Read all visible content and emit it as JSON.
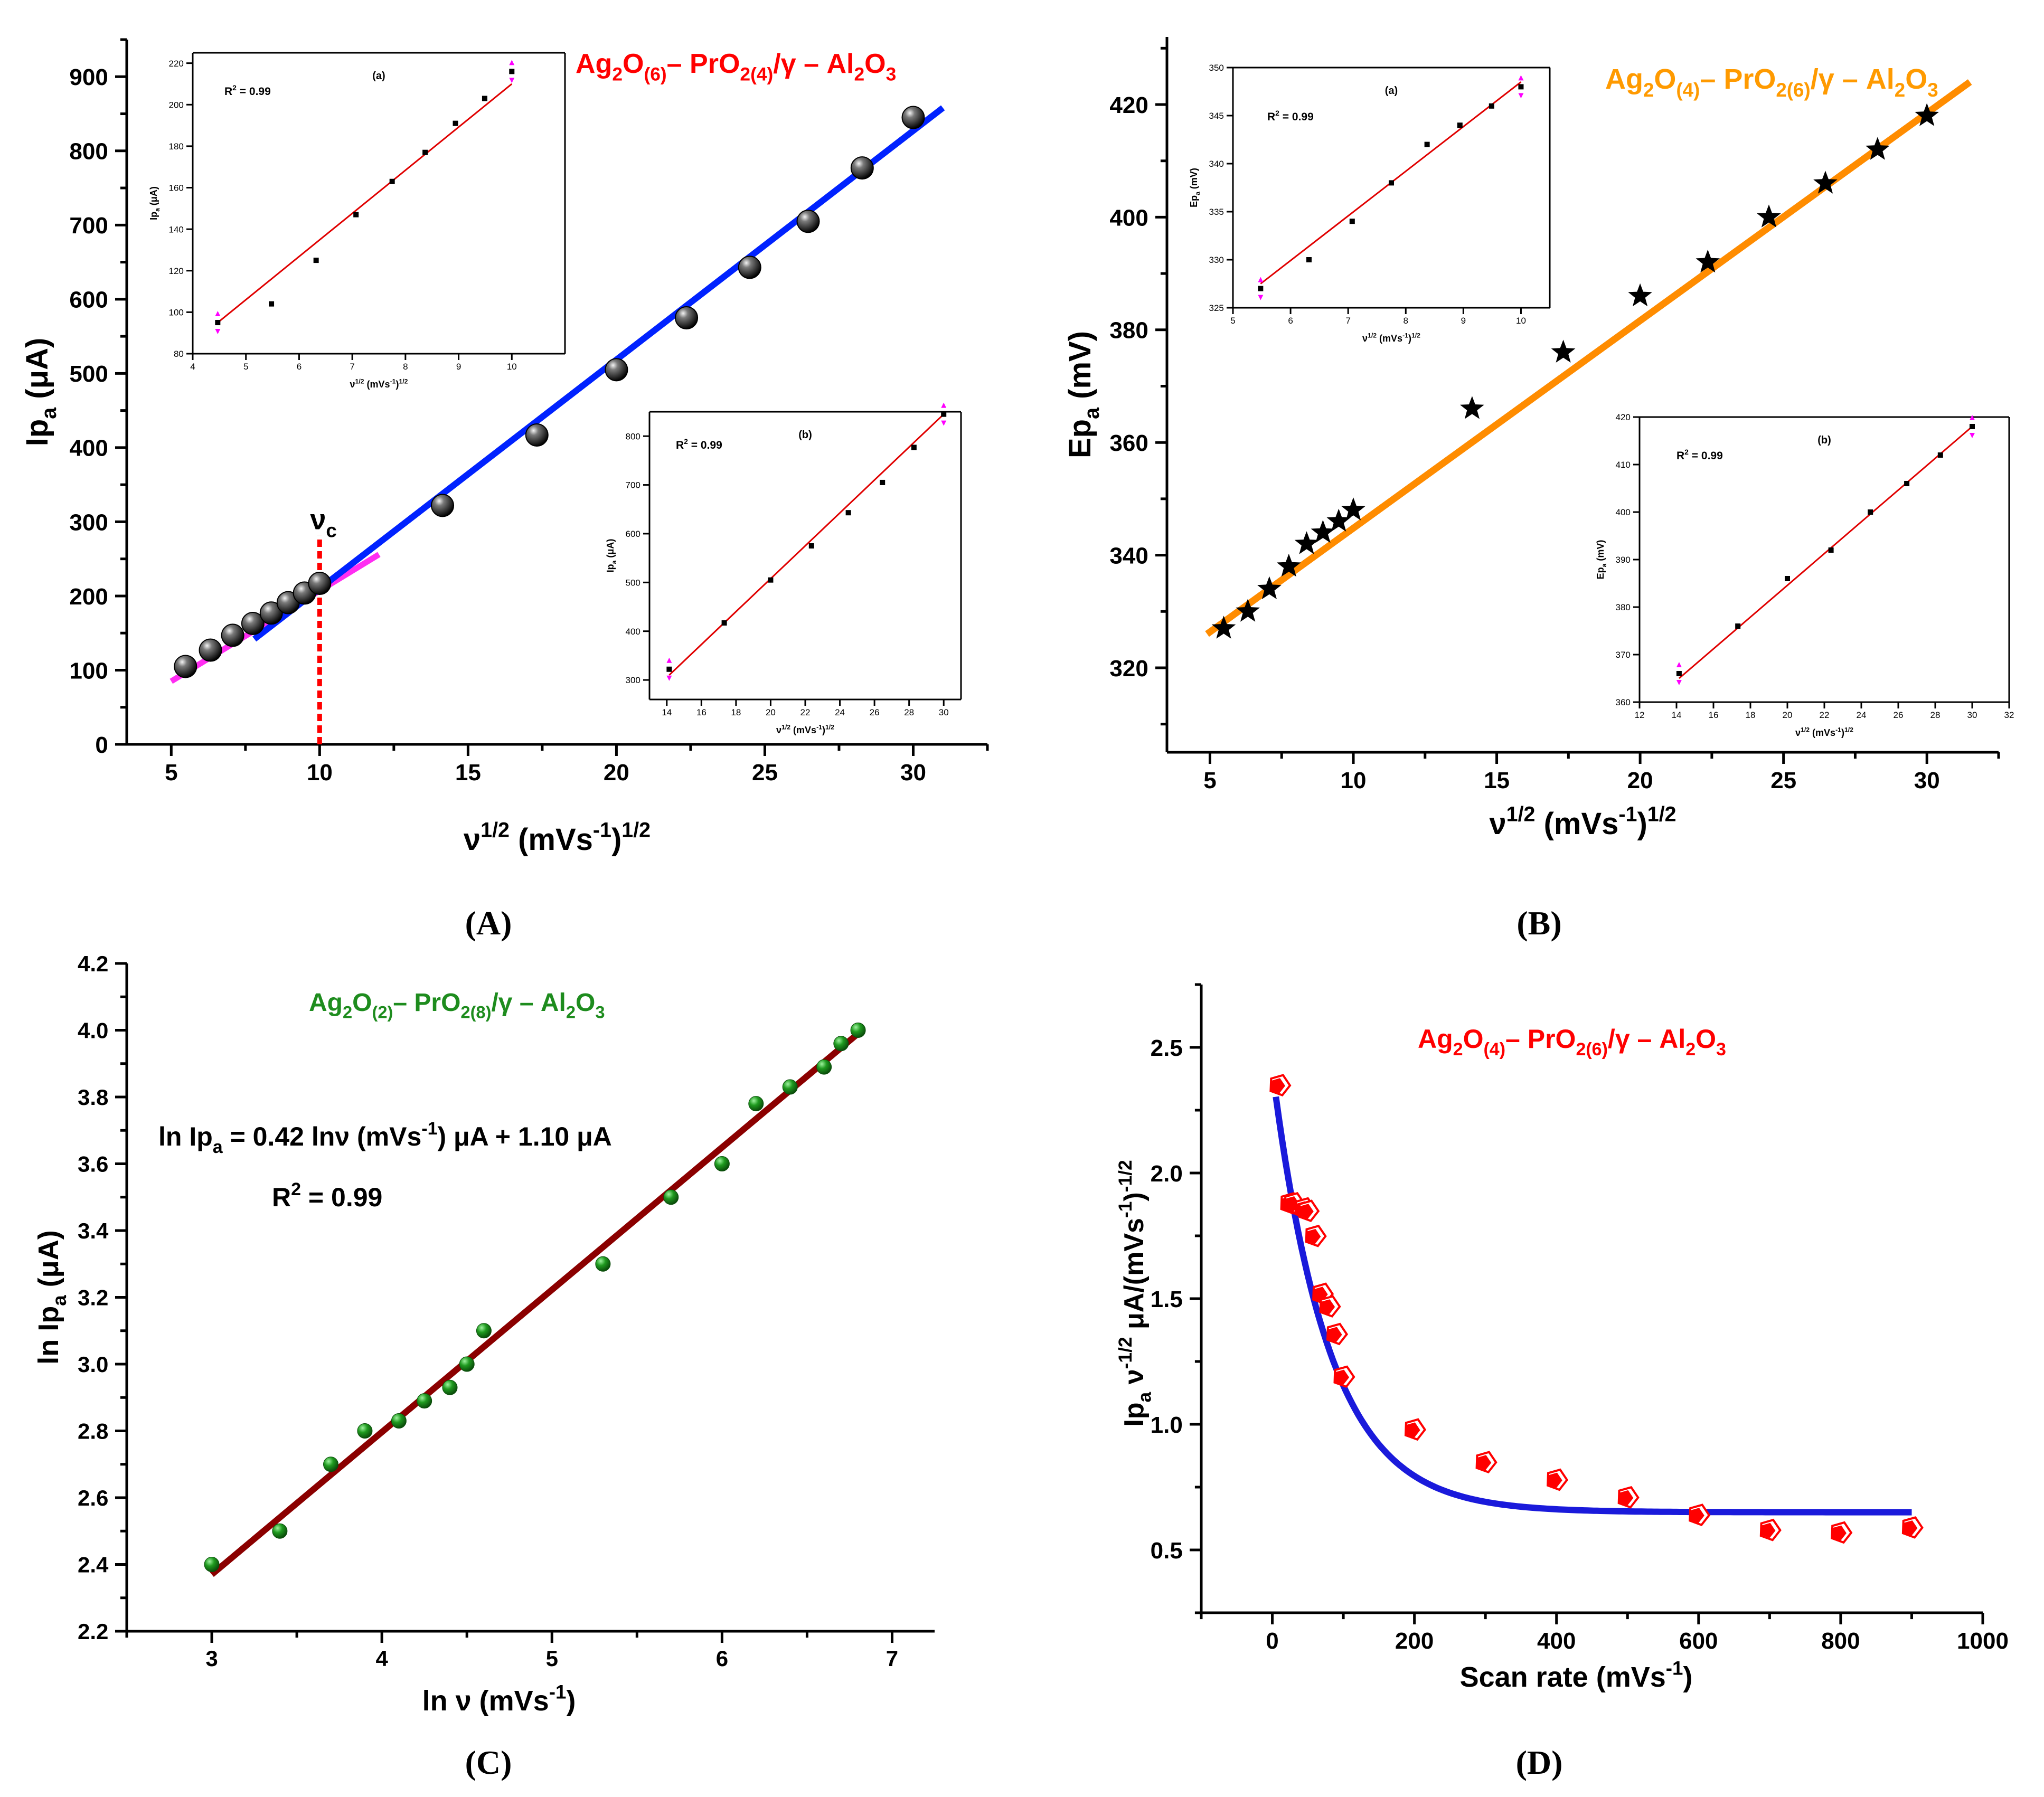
{
  "panels": {
    "A": {
      "label": "(A)",
      "title": {
        "parts": [
          [
            "Ag",
            "n"
          ],
          [
            "2",
            "sub"
          ],
          [
            "O",
            "n"
          ],
          [
            "(6)",
            "sub"
          ],
          [
            "– PrO",
            "n"
          ],
          [
            "2(4)",
            "sub"
          ],
          [
            "/γ – Al",
            "n"
          ],
          [
            "2",
            "sub"
          ],
          [
            "O",
            "n"
          ],
          [
            "3",
            "sub"
          ]
        ]
      },
      "xlabel": {
        "parts": [
          [
            "ν",
            "n"
          ],
          [
            "1/2",
            "sup"
          ],
          [
            " (mVs",
            "n"
          ],
          [
            "-1",
            "sup"
          ],
          [
            ")",
            "n"
          ],
          [
            "1/2",
            "sup"
          ]
        ]
      },
      "ylabel": {
        "parts": [
          [
            "Ip",
            "n"
          ],
          [
            "a",
            "sub"
          ],
          [
            " (μA)",
            "n"
          ]
        ]
      },
      "annotation": {
        "parts": [
          [
            "ν",
            "n"
          ],
          [
            "c",
            "sub"
          ]
        ]
      },
      "chart_data": {
        "type": "scatter",
        "xlim": [
          3.5,
          32.5
        ],
        "ylim": [
          0,
          950
        ],
        "xticks": [
          5,
          10,
          15,
          20,
          25,
          30
        ],
        "yticks": [
          0,
          100,
          200,
          300,
          400,
          500,
          600,
          700,
          800,
          900
        ],
        "points": {
          "x": [
            5.48,
            6.32,
            7.07,
            7.75,
            8.37,
            8.94,
            9.49,
            10.0,
            14.14,
            17.32,
            20.0,
            22.36,
            24.49,
            26.46,
            28.28,
            30.0
          ],
          "y": [
            105,
            127,
            147,
            163,
            177,
            191,
            204,
            217,
            322,
            417,
            505,
            575,
            643,
            705,
            777,
            845
          ]
        },
        "fit_low": {
          "x": [
            5.0,
            12.0
          ],
          "y": [
            85,
            256
          ],
          "color": "#ff2df2"
        },
        "fit_high": {
          "x": [
            7.8,
            31.0
          ],
          "y": [
            142,
            858
          ],
          "color": "#0022ff"
        },
        "vc_x": 10,
        "inset_a": {
          "label": "(a)",
          "r2": "R",
          "r2_sup": "2",
          "r2_val": " = 0.99",
          "xlabel": {
            "parts": [
              [
                "ν",
                "n"
              ],
              [
                "1/2",
                "sup"
              ],
              [
                " (mVs",
                "n"
              ],
              [
                "-1",
                "sup"
              ],
              [
                ")",
                "n"
              ],
              [
                "1/2",
                "sup"
              ]
            ]
          },
          "ylabel": {
            "parts": [
              [
                "Ip",
                "n"
              ],
              [
                "a",
                "sub"
              ],
              [
                " (μA)",
                "n"
              ]
            ]
          },
          "xlim": [
            4,
            11
          ],
          "ylim": [
            80,
            225
          ],
          "xticks": [
            4,
            5,
            6,
            7,
            8,
            9,
            10
          ],
          "yticks": [
            80,
            100,
            120,
            140,
            160,
            180,
            200,
            220
          ],
          "points": {
            "x": [
              4.47,
              5.48,
              6.32,
              7.07,
              7.75,
              8.37,
              8.94,
              9.49,
              10.0
            ],
            "y": [
              95,
              104,
              125,
              147,
              163,
              177,
              191,
              203,
              216
            ]
          },
          "fit": {
            "x": [
              4.47,
              10.0
            ],
            "y": [
              95,
              210
            ]
          }
        },
        "inset_b": {
          "label": "(b)",
          "r2": "R",
          "r2_sup": "2",
          "r2_val": " = 0.99",
          "xlabel": {
            "parts": [
              [
                "ν",
                "n"
              ],
              [
                "1/2",
                "sup"
              ],
              [
                " (mVs",
                "n"
              ],
              [
                "-1",
                "sup"
              ],
              [
                ")",
                "n"
              ],
              [
                "1/2",
                "sup"
              ]
            ]
          },
          "ylabel": {
            "parts": [
              [
                "Ip",
                "n"
              ],
              [
                "a",
                "sub"
              ],
              [
                " (μA)",
                "n"
              ]
            ]
          },
          "xlim": [
            13,
            31
          ],
          "ylim": [
            260,
            850
          ],
          "xticks": [
            14,
            16,
            18,
            20,
            22,
            24,
            26,
            28,
            30
          ],
          "yticks": [
            300,
            400,
            500,
            600,
            700,
            800
          ],
          "points": {
            "x": [
              14.14,
              17.32,
              20.0,
              22.36,
              24.49,
              26.46,
              28.28,
              30.0
            ],
            "y": [
              322,
              417,
              505,
              575,
              643,
              705,
              777,
              845
            ]
          },
          "fit": {
            "x": [
              14.14,
              30.0
            ],
            "y": [
              310,
              845
            ]
          }
        }
      }
    },
    "B": {
      "label": "(B)",
      "title": {
        "parts": [
          [
            "Ag",
            "n"
          ],
          [
            "2",
            "sub"
          ],
          [
            "O",
            "n"
          ],
          [
            "(4)",
            "sub"
          ],
          [
            "– PrO",
            "n"
          ],
          [
            "2(6)",
            "sub"
          ],
          [
            "/γ – Al",
            "n"
          ],
          [
            "2",
            "sub"
          ],
          [
            "O",
            "n"
          ],
          [
            "3",
            "sub"
          ]
        ]
      },
      "xlabel": {
        "parts": [
          [
            "ν",
            "n"
          ],
          [
            "1/2",
            "sup"
          ],
          [
            " (mVs",
            "n"
          ],
          [
            "-1",
            "sup"
          ],
          [
            ")",
            "n"
          ],
          [
            "1/2",
            "sup"
          ]
        ]
      },
      "ylabel": {
        "parts": [
          [
            "Ep",
            "n"
          ],
          [
            "a",
            "sub"
          ],
          [
            " (mV)",
            "n"
          ]
        ]
      },
      "chart_data": {
        "type": "scatter",
        "xlim": [
          3.5,
          32.5
        ],
        "ylim": [
          305,
          432
        ],
        "xticks": [
          5,
          10,
          15,
          20,
          25,
          30
        ],
        "yticks": [
          320,
          340,
          360,
          380,
          400,
          420
        ],
        "points": {
          "x": [
            5.48,
            6.32,
            7.07,
            7.75,
            8.37,
            8.94,
            9.49,
            10.0,
            14.14,
            17.32,
            20.0,
            22.36,
            24.49,
            26.46,
            28.28,
            30.0
          ],
          "y": [
            327,
            330,
            334,
            338,
            342,
            344,
            346,
            348,
            366,
            376,
            386,
            392,
            400,
            406,
            412,
            418
          ]
        },
        "fit": {
          "x": [
            4.9,
            31.5
          ],
          "y": [
            326,
            424
          ],
          "color": "#ff8c00"
        },
        "inset_a": {
          "label": "(a)",
          "r2": "R",
          "r2_sup": "2",
          "r2_val": " = 0.99",
          "xlabel": {
            "parts": [
              [
                "ν",
                "n"
              ],
              [
                "1/2",
                "sup"
              ],
              [
                " (mVs",
                "n"
              ],
              [
                "-1",
                "sup"
              ],
              [
                ")",
                "n"
              ],
              [
                "1/2",
                "sup"
              ]
            ]
          },
          "ylabel": {
            "parts": [
              [
                "Ep",
                "n"
              ],
              [
                "a",
                "sub"
              ],
              [
                " (mV)",
                "n"
              ]
            ]
          },
          "xlim": [
            5,
            10.5
          ],
          "ylim": [
            325,
            350
          ],
          "xticks": [
            5,
            6,
            7,
            8,
            9,
            10
          ],
          "yticks": [
            325,
            330,
            335,
            340,
            345,
            350
          ],
          "points": {
            "x": [
              5.48,
              6.32,
              7.07,
              7.75,
              8.37,
              8.94,
              9.49,
              10.0
            ],
            "y": [
              327,
              330,
              334,
              338,
              342,
              344,
              346,
              348
            ]
          },
          "fit": {
            "x": [
              5.48,
              10.0
            ],
            "y": [
              327.5,
              348.5
            ]
          }
        },
        "inset_b": {
          "label": "(b)",
          "r2": "R",
          "r2_sup": "2",
          "r2_val": " = 0.99",
          "xlabel": {
            "parts": [
              [
                "ν",
                "n"
              ],
              [
                "1/2",
                "sup"
              ],
              [
                " (mVs",
                "n"
              ],
              [
                "-1",
                "sup"
              ],
              [
                ")",
                "n"
              ],
              [
                "1/2",
                "sup"
              ]
            ]
          },
          "ylabel": {
            "parts": [
              [
                "Ep",
                "n"
              ],
              [
                "a",
                "sub"
              ],
              [
                " (mV)",
                "n"
              ]
            ]
          },
          "xlim": [
            12,
            32
          ],
          "ylim": [
            360,
            420
          ],
          "xticks": [
            12,
            14,
            16,
            18,
            20,
            22,
            24,
            26,
            28,
            30,
            32
          ],
          "yticks": [
            360,
            370,
            380,
            390,
            400,
            410,
            420
          ],
          "points": {
            "x": [
              14.14,
              17.32,
              20.0,
              22.36,
              24.49,
              26.46,
              28.28,
              30.0
            ],
            "y": [
              366,
              376,
              386,
              392,
              400,
              406,
              412,
              418
            ]
          },
          "fit": {
            "x": [
              14.14,
              30.0
            ],
            "y": [
              365,
              418
            ]
          }
        }
      }
    },
    "C": {
      "label": "(C)",
      "title": {
        "parts": [
          [
            "Ag",
            "n"
          ],
          [
            "2",
            "sub"
          ],
          [
            "O",
            "n"
          ],
          [
            "(2)",
            "sub"
          ],
          [
            "– PrO",
            "n"
          ],
          [
            "2(8)",
            "sub"
          ],
          [
            "/γ – Al",
            "n"
          ],
          [
            "2",
            "sub"
          ],
          [
            "O",
            "n"
          ],
          [
            "3",
            "sub"
          ]
        ]
      },
      "xlabel": {
        "parts": [
          [
            "ln ν (mVs",
            "n"
          ],
          [
            "-1",
            "sup"
          ],
          [
            ")",
            "n"
          ]
        ]
      },
      "ylabel": {
        "parts": [
          [
            "ln Ip",
            "n"
          ],
          [
            "a",
            "sub"
          ],
          [
            " (μA)",
            "n"
          ]
        ]
      },
      "equation": {
        "parts": [
          [
            "ln Ip",
            "n"
          ],
          [
            "a",
            "sub"
          ],
          [
            " = 0.42 lnν (mVs",
            "n"
          ],
          [
            "-1",
            "sup"
          ],
          [
            ") μA + 1.10 μA",
            "n"
          ]
        ]
      },
      "r2": {
        "parts": [
          [
            "R",
            "n"
          ],
          [
            "2",
            "sup"
          ],
          [
            " = 0.99",
            "n"
          ]
        ]
      },
      "chart_data": {
        "type": "scatter",
        "xlim": [
          2.5,
          7.25
        ],
        "ylim": [
          2.2,
          4.2
        ],
        "xticks": [
          3,
          4,
          5,
          6,
          7
        ],
        "yticks": [
          2.2,
          2.4,
          2.6,
          2.8,
          3.0,
          3.2,
          3.4,
          3.6,
          3.8,
          4.0,
          4.2
        ],
        "points": {
          "x": [
            3.0,
            3.4,
            3.7,
            3.9,
            4.1,
            4.25,
            4.4,
            4.5,
            4.6,
            5.3,
            5.7,
            6.0,
            6.2,
            6.4,
            6.6,
            6.7,
            6.8
          ],
          "y": [
            2.4,
            2.5,
            2.7,
            2.8,
            2.83,
            2.89,
            2.93,
            3.0,
            3.1,
            3.3,
            3.5,
            3.6,
            3.78,
            3.83,
            3.89,
            3.96,
            4.0
          ]
        },
        "fit": {
          "x": [
            3.0,
            6.8
          ],
          "y": [
            2.37,
            3.99
          ],
          "color": "#8b0000"
        }
      }
    },
    "D": {
      "label": "(D)",
      "title": {
        "parts": [
          [
            "Ag",
            "n"
          ],
          [
            "2",
            "sub"
          ],
          [
            "O",
            "n"
          ],
          [
            "(4)",
            "sub"
          ],
          [
            "– PrO",
            "n"
          ],
          [
            "2(6)",
            "sub"
          ],
          [
            "/γ – Al",
            "n"
          ],
          [
            "2",
            "sub"
          ],
          [
            "O",
            "n"
          ],
          [
            "3",
            "sub"
          ]
        ]
      },
      "xlabel": {
        "parts": [
          [
            "Scan rate (mVs",
            "n"
          ],
          [
            "-1",
            "sup"
          ],
          [
            ")",
            "n"
          ]
        ]
      },
      "ylabel": {
        "parts": [
          [
            "Ip",
            "n"
          ],
          [
            "a",
            "sub"
          ],
          [
            " ν",
            "n"
          ],
          [
            "-1/2",
            "sup"
          ],
          [
            " μA/(mVs",
            "n"
          ],
          [
            "-1",
            "sup"
          ],
          [
            ")",
            "n"
          ],
          [
            "-1/2",
            "sup"
          ]
        ]
      },
      "chart_data": {
        "type": "scatter",
        "xlim": [
          -100,
          1000
        ],
        "ylim": [
          0.25,
          2.75
        ],
        "xticks": [
          0,
          200,
          400,
          600,
          800,
          1000
        ],
        "yticks": [
          0.5,
          1.0,
          1.5,
          2.0,
          2.5
        ],
        "points": {
          "x": [
            10,
            25,
            30,
            45,
            50,
            60,
            70,
            80,
            90,
            100,
            200,
            300,
            400,
            500,
            600,
            700,
            800,
            900
          ],
          "y": [
            2.35,
            1.88,
            1.88,
            1.86,
            1.85,
            1.75,
            1.52,
            1.47,
            1.36,
            1.19,
            0.98,
            0.85,
            0.78,
            0.71,
            0.64,
            0.58,
            0.57,
            0.59
          ]
        },
        "fit": {
          "type": "exp_decay",
          "y0": 0.65,
          "A": 1.76,
          "t": 80,
          "x_range": [
            5,
            900
          ],
          "color": "#1a1adb"
        }
      }
    }
  }
}
